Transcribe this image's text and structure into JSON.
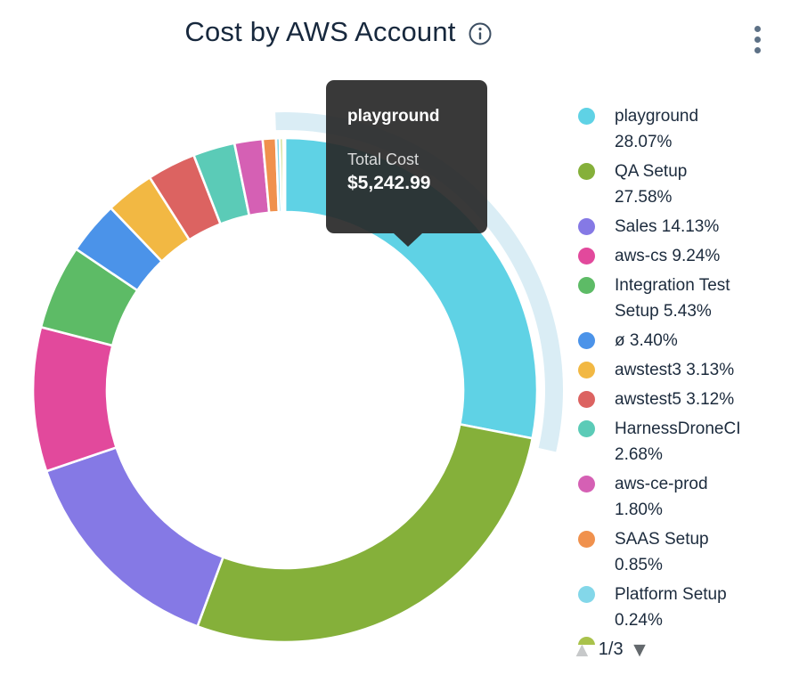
{
  "header": {
    "title": "Cost by AWS Account"
  },
  "tooltip": {
    "title": "playground",
    "label": "Total Cost",
    "value": "$5,242.99"
  },
  "chart_data": {
    "type": "pie",
    "subtype": "donut",
    "title": "Cost by AWS Account",
    "unit": "percent",
    "start_angle": "12-oclock",
    "direction": "clockwise",
    "legend_position": "right",
    "series": [
      {
        "name": "playground",
        "pct": 28.07,
        "color": "#5fd2e5",
        "highlighted": true
      },
      {
        "name": "QA Setup",
        "pct": 27.58,
        "color": "#85b03a"
      },
      {
        "name": "Sales",
        "pct": 14.13,
        "color": "#8579e5"
      },
      {
        "name": "aws-cs",
        "pct": 9.24,
        "color": "#e2499c"
      },
      {
        "name": "Integration Test Setup",
        "pct": 5.43,
        "color": "#5dbb66"
      },
      {
        "name": "ø",
        "pct": 3.4,
        "color": "#4b93e9"
      },
      {
        "name": "awstest3",
        "pct": 3.13,
        "color": "#f2b843"
      },
      {
        "name": "awstest5",
        "pct": 3.12,
        "color": "#dc6361"
      },
      {
        "name": "HarnessDroneCI",
        "pct": 2.68,
        "color": "#5bcbb7"
      },
      {
        "name": "aws-ce-prod",
        "pct": 1.8,
        "color": "#d560b4"
      },
      {
        "name": "SAAS Setup",
        "pct": 0.85,
        "color": "#f0914d"
      },
      {
        "name": "Platform Setup",
        "pct": 0.24,
        "color": "#83d7e9"
      }
    ],
    "others_unlabeled": [
      {
        "pct": 0.2,
        "color": "#b7cb4e"
      },
      {
        "pct": 0.13,
        "color": "#62cdbb"
      }
    ],
    "highlight": {
      "series": "playground",
      "halo_color": "#daedf5"
    },
    "hovered_slice_total_cost": "$5,242.99"
  },
  "legend": {
    "next_page_partial_dot_color": "#a9c24b"
  },
  "pagination": {
    "up_glyph": "▲",
    "text": "1/3",
    "down_glyph": "▼"
  }
}
